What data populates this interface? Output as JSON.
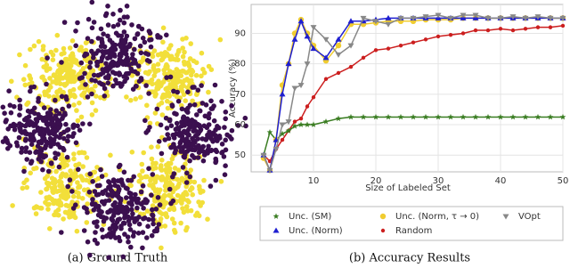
{
  "chart_data": [
    {
      "type": "scatter",
      "caption": "(a) Ground Truth",
      "xlim": [
        -1.5,
        1.5
      ],
      "ylim": [
        -1.5,
        1.5
      ],
      "series": [
        {
          "color": "#f2df3a",
          "x": [
            0.66,
            0.66,
            -0.66,
            -0.66
          ],
          "y": [
            0.7,
            -0.7,
            -0.7,
            0.7
          ]
        },
        {
          "color": "#3b0f4f",
          "x": [
            0,
            0.98,
            0,
            -0.98
          ],
          "y": [
            0.98,
            0,
            -0.98,
            0
          ]
        }
      ]
    },
    {
      "type": "line",
      "caption": "(b) Accuracy Results",
      "xlabel": "Size of Labeled Set",
      "ylabel": "Accuracy (%)",
      "xlim": [
        0,
        50
      ],
      "ylim": [
        44.5,
        99.5
      ],
      "xticks": [
        10,
        20,
        30,
        40,
        50
      ],
      "yticks": [
        50,
        60,
        70,
        80,
        90
      ],
      "grid": true,
      "x": [
        2,
        3,
        4,
        5,
        6,
        7,
        8,
        9,
        10,
        12,
        14,
        16,
        18,
        20,
        22,
        24,
        26,
        28,
        30,
        32,
        34,
        36,
        38,
        40,
        42,
        44,
        46,
        48,
        50
      ],
      "series": [
        {
          "name": "Unc. (SM)",
          "color": "#3a7d22",
          "marker": "star",
          "values": [
            50,
            57.5,
            55,
            57,
            58,
            59.5,
            60,
            60,
            60,
            61,
            62,
            62.5,
            62.5,
            62.5,
            62.5,
            62.5,
            62.5,
            62.5,
            62.5,
            62.5,
            62.5,
            62.5,
            62.5,
            62.5,
            62.5,
            62.5,
            62.5,
            62.5,
            62.5
          ]
        },
        {
          "name": "Unc. (Norm)",
          "color": "#1f1fd0",
          "marker": "triangle",
          "values": [
            50,
            45,
            55,
            70,
            80,
            88,
            94,
            89,
            85,
            82,
            88,
            94,
            94,
            94.5,
            95,
            95,
            95,
            95,
            95,
            95,
            95,
            95,
            95,
            95,
            95,
            95,
            95,
            95,
            95
          ]
        },
        {
          "name": "Unc. (Norm, τ → 0)",
          "color": "#f0cc30",
          "marker": "circle",
          "values": [
            49,
            45,
            55,
            73,
            80,
            90,
            94.5,
            90,
            86,
            81,
            86,
            93,
            93,
            93.5,
            94,
            94,
            94,
            94.5,
            94.5,
            94.5,
            95,
            95,
            95,
            95,
            95,
            95,
            95,
            95,
            95
          ]
        },
        {
          "name": "Random",
          "color": "#cc1f1f",
          "marker": "dot",
          "values": [
            50,
            48,
            52,
            55,
            58,
            61,
            62,
            66,
            69,
            75,
            77,
            79,
            82,
            84.5,
            85,
            86,
            87,
            88,
            89,
            89.5,
            90,
            91,
            91,
            91.5,
            91,
            91.5,
            92,
            92,
            92.5
          ]
        },
        {
          "name": "VOpt",
          "color": "#888888",
          "marker": "down",
          "values": [
            50,
            45,
            52,
            60,
            61,
            72,
            73,
            80,
            92,
            88,
            83,
            86,
            95,
            94,
            93,
            95,
            95,
            95.5,
            96,
            95,
            96,
            96,
            95,
            95,
            95.5,
            95,
            95.5,
            95,
            95
          ]
        }
      ]
    }
  ]
}
